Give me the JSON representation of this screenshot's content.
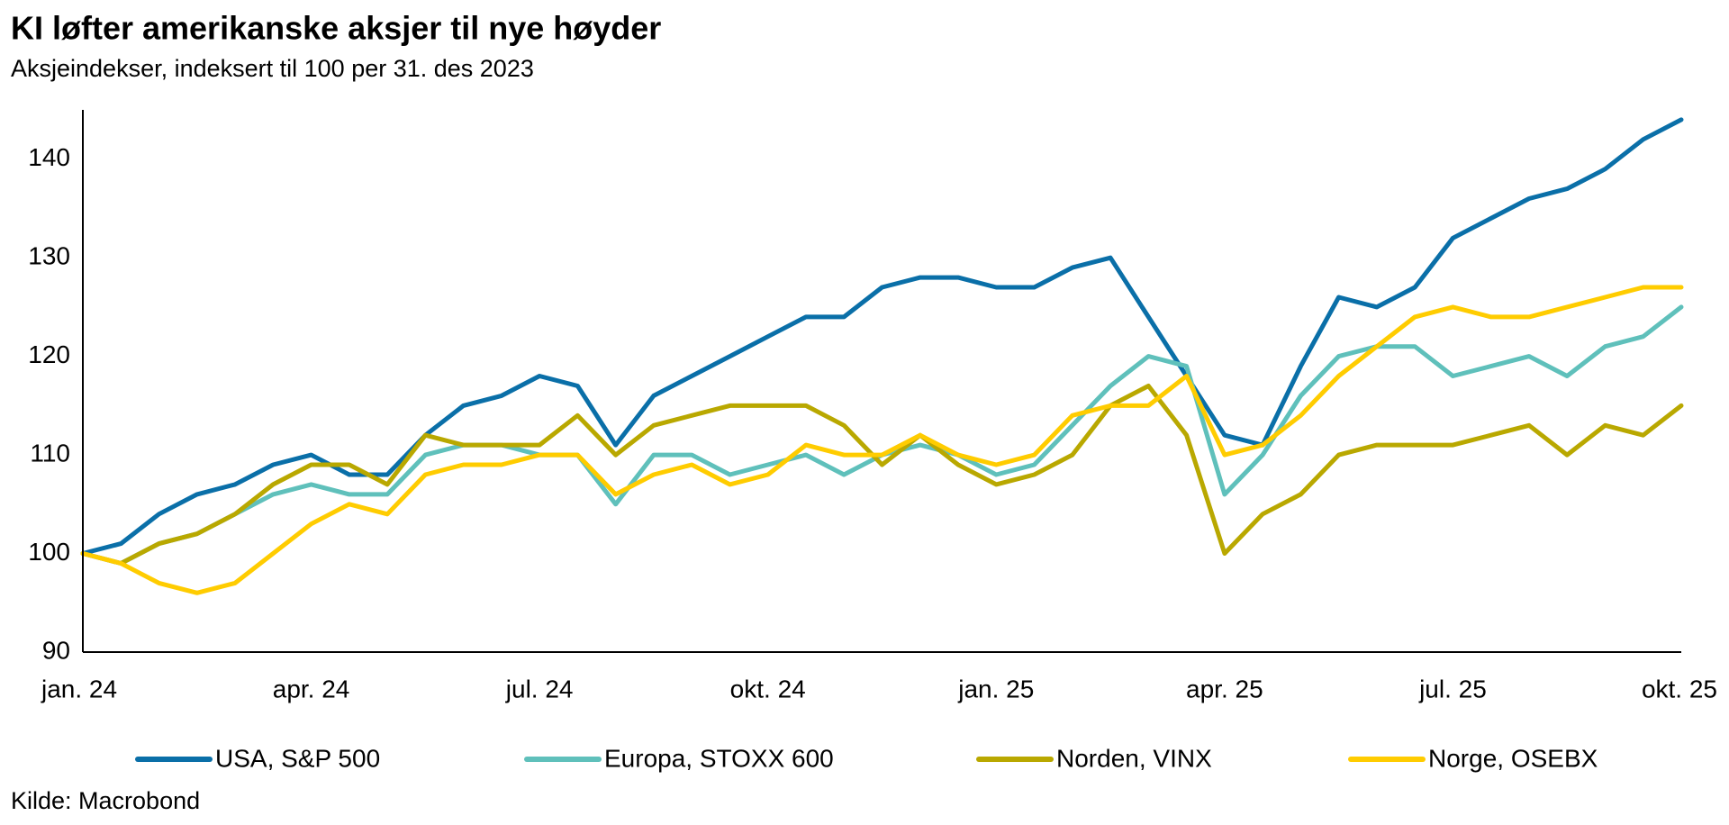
{
  "chart_data": {
    "type": "line",
    "title": "KI løfter amerikanske aksjer til nye høyder",
    "subtitle": "Aksjeindekser, indeksert til 100 per 31. des 2023",
    "source": "Kilde: Macrobond",
    "categories": [
      "jan. 24",
      null,
      null,
      null,
      null,
      null,
      "apr. 24",
      null,
      null,
      null,
      null,
      null,
      "jul. 24",
      null,
      null,
      null,
      null,
      null,
      "okt. 24",
      null,
      null,
      null,
      null,
      null,
      "jan. 25",
      null,
      null,
      null,
      null,
      null,
      "apr. 25",
      null,
      null,
      null,
      null,
      null,
      "jul. 25",
      null,
      null,
      null,
      null,
      null,
      "okt. 25"
    ],
    "series": [
      {
        "name": "USA, S&P 500",
        "color": "#0a6fa8",
        "values": [
          100,
          101,
          104,
          106,
          107,
          109,
          110,
          108,
          108,
          112,
          115,
          116,
          118,
          117,
          111,
          116,
          118,
          120,
          122,
          124,
          124,
          127,
          128,
          128,
          127,
          127,
          129,
          130,
          124,
          118,
          112,
          111,
          119,
          126,
          125,
          127,
          132,
          134,
          136,
          137,
          139,
          142,
          144
        ]
      },
      {
        "name": "Europa, STOXX 600",
        "color": "#5fc0bb",
        "values": [
          100,
          99,
          101,
          102,
          104,
          106,
          107,
          106,
          106,
          110,
          111,
          111,
          110,
          110,
          105,
          110,
          110,
          108,
          109,
          110,
          108,
          110,
          111,
          110,
          108,
          109,
          113,
          117,
          120,
          119,
          106,
          110,
          116,
          120,
          121,
          121,
          118,
          119,
          120,
          118,
          121,
          122,
          125
        ]
      },
      {
        "name": "Norden, VINX",
        "color": "#b9a800",
        "values": [
          100,
          99,
          101,
          102,
          104,
          107,
          109,
          109,
          107,
          112,
          111,
          111,
          111,
          114,
          110,
          113,
          114,
          115,
          115,
          115,
          113,
          109,
          112,
          109,
          107,
          108,
          110,
          115,
          117,
          112,
          100,
          104,
          106,
          110,
          111,
          111,
          111,
          112,
          113,
          110,
          113,
          112,
          115
        ]
      },
      {
        "name": "Norge, OSEBX",
        "color": "#ffcc00",
        "values": [
          100,
          99,
          97,
          96,
          97,
          100,
          103,
          105,
          104,
          108,
          109,
          109,
          110,
          110,
          106,
          108,
          109,
          107,
          108,
          111,
          110,
          110,
          112,
          110,
          109,
          110,
          114,
          115,
          115,
          118,
          110,
          111,
          114,
          118,
          121,
          124,
          125,
          124,
          124,
          125,
          126,
          127,
          127
        ]
      }
    ],
    "ylim": [
      90,
      145
    ],
    "yticks": [
      90,
      100,
      110,
      120,
      130,
      140
    ],
    "grid": false
  }
}
